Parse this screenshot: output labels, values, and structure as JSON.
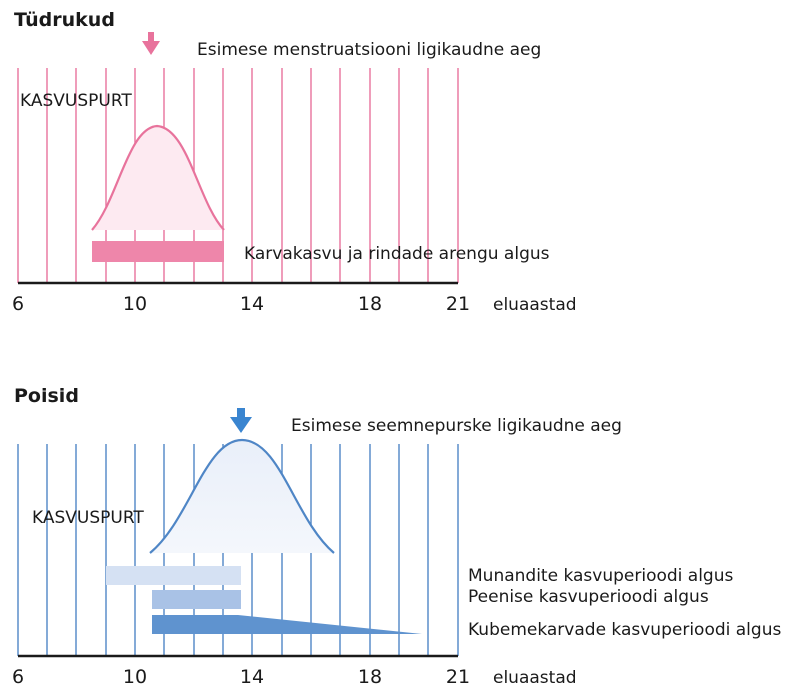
{
  "girls": {
    "title": "Tüdrukud",
    "marker_label": "Esimese menstruatsiooni ligikaudne aeg",
    "spurt_label": "KASVUSPURT",
    "bar_label": "Karvakasvu ja rindade arengu algus",
    "color": "#e8739c",
    "bar_color": "#ee86aa"
  },
  "boys": {
    "title": "Poisid",
    "marker_label": "Esimese seemnepurske ligikaudne aeg",
    "spurt_label": "KASVUSPURT",
    "bar_labels": [
      "Munandite kasvuperioodi algus",
      "Peenise kasvuperioodi algus",
      "Kubemekarvade kasvuperioodi algus"
    ],
    "color": "#4f86c6",
    "bar_colors": [
      "#d5e1f3",
      "#a9c2e6",
      "#5f93cf"
    ]
  },
  "axis": {
    "ticks": [
      "6",
      "10",
      "14",
      "18",
      "21"
    ],
    "unit": "eluaastad"
  }
}
